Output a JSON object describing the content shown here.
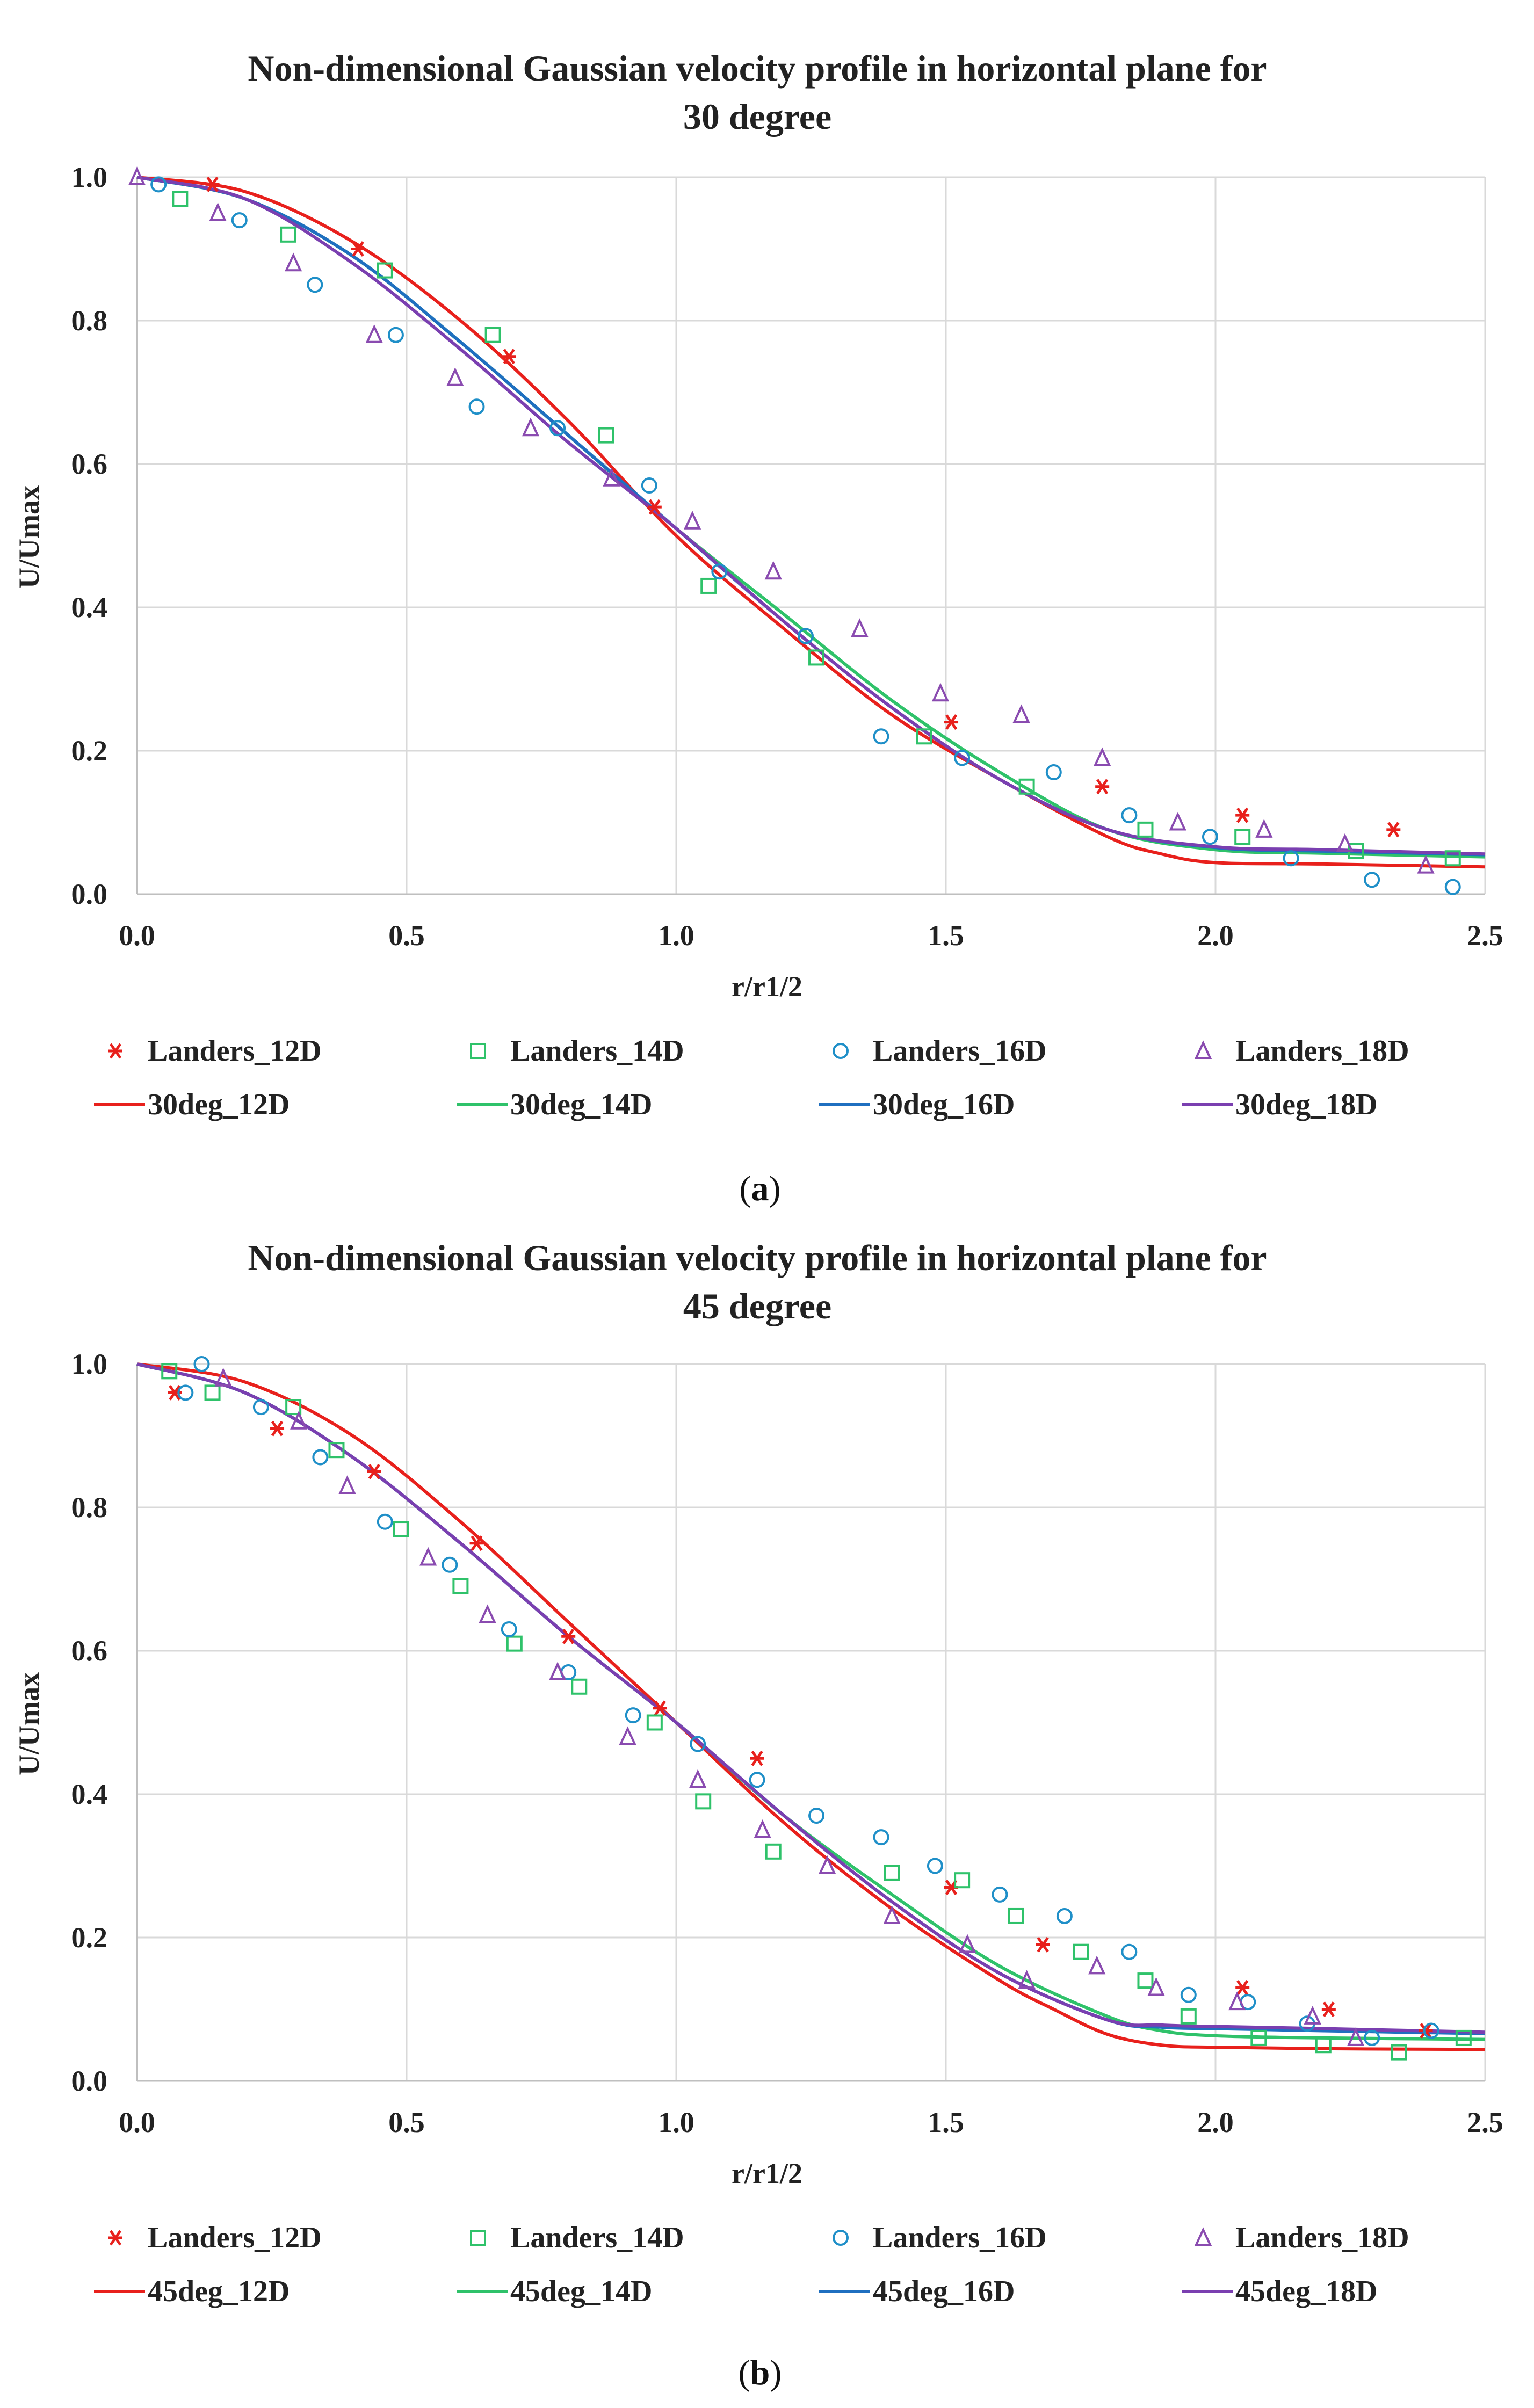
{
  "chart_data": [
    {
      "type": "scatter+line",
      "title": "Non-dimensional  Gaussian velocity profile in horizontal plane for",
      "subtitle": "30 degree",
      "xlabel": "r/r1/2",
      "ylabel": "U/Umax",
      "xlim": [
        0,
        2.5
      ],
      "ylim": [
        0,
        1.0
      ],
      "xticks": [
        "0.0",
        "0.5",
        "1.0",
        "1.5",
        "2.0",
        "2.5"
      ],
      "yticks": [
        "0.0",
        "0.2",
        "0.4",
        "0.6",
        "0.8",
        "1.0"
      ],
      "grid": true,
      "legend_position": "bottom",
      "caption": "a",
      "scatter_series": [
        {
          "name": "Landers_12D",
          "marker": "star",
          "color": "#e8201c",
          "x": [
            0.14,
            0.41,
            0.69,
            0.96,
            1.51,
            1.79,
            2.05,
            2.33
          ],
          "y": [
            0.99,
            0.9,
            0.75,
            0.54,
            0.24,
            0.15,
            0.11,
            0.09
          ]
        },
        {
          "name": "Landers_14D",
          "marker": "square",
          "color": "#2fc26a",
          "x": [
            0.08,
            0.28,
            0.46,
            0.66,
            0.87,
            1.06,
            1.26,
            1.46,
            1.65,
            1.87,
            2.05,
            2.26,
            2.44
          ],
          "y": [
            0.97,
            0.92,
            0.87,
            0.78,
            0.64,
            0.43,
            0.33,
            0.22,
            0.15,
            0.09,
            0.08,
            0.06,
            0.05
          ],
          "note": "additional point at (0.75, 0.65) visually overlapping"
        },
        {
          "name": "Landers_16D",
          "marker": "circle",
          "color": "#1f8fc8",
          "x": [
            0.04,
            0.19,
            0.33,
            0.48,
            0.63,
            0.78,
            0.95,
            1.08,
            1.24,
            1.38,
            1.53,
            1.7,
            1.84,
            1.99,
            2.14,
            2.29,
            2.44
          ],
          "y": [
            0.99,
            0.94,
            0.85,
            0.78,
            0.68,
            0.65,
            0.57,
            0.45,
            0.36,
            0.22,
            0.19,
            0.17,
            0.11,
            0.08,
            0.05,
            0.02,
            0.01
          ]
        },
        {
          "name": "Landers_18D",
          "marker": "triangle",
          "color": "#8a4bb0",
          "x": [
            0.0,
            0.15,
            0.29,
            0.44,
            0.59,
            0.73,
            0.88,
            1.03,
            1.18,
            1.34,
            1.49,
            1.64,
            1.79,
            1.93,
            2.09,
            2.24,
            2.39
          ],
          "y": [
            1.0,
            0.95,
            0.88,
            0.78,
            0.72,
            0.65,
            0.58,
            0.52,
            0.45,
            0.37,
            0.28,
            0.25,
            0.19,
            0.1,
            0.09,
            0.07,
            0.04
          ]
        }
      ],
      "line_series": [
        {
          "name": "30deg_12D",
          "color": "#e8201c",
          "x": [
            0.0,
            0.2,
            0.4,
            0.6,
            0.8,
            1.0,
            1.2,
            1.4,
            1.6,
            1.8,
            1.9,
            2.0,
            2.2,
            2.5
          ],
          "y": [
            1.0,
            0.98,
            0.91,
            0.8,
            0.66,
            0.5,
            0.37,
            0.25,
            0.16,
            0.08,
            0.056,
            0.044,
            0.042,
            0.038
          ]
        },
        {
          "name": "30deg_14D",
          "color": "#2fc26a",
          "x": [
            0.0,
            0.2,
            0.4,
            0.6,
            0.8,
            1.0,
            1.2,
            1.4,
            1.6,
            1.8,
            2.0,
            2.2,
            2.5
          ],
          "y": [
            1.0,
            0.97,
            0.89,
            0.77,
            0.64,
            0.51,
            0.39,
            0.27,
            0.17,
            0.09,
            0.062,
            0.057,
            0.052
          ]
        },
        {
          "name": "30deg_16D",
          "color": "#1f6fc0",
          "x": [
            0.0,
            0.2,
            0.4,
            0.6,
            0.8,
            1.0,
            1.2,
            1.4,
            1.6,
            1.8,
            2.0,
            2.2,
            2.5
          ],
          "y": [
            1.0,
            0.97,
            0.89,
            0.77,
            0.64,
            0.51,
            0.38,
            0.26,
            0.16,
            0.09,
            0.065,
            0.06,
            0.055
          ]
        },
        {
          "name": "30deg_18D",
          "color": "#7a3fb0",
          "x": [
            0.0,
            0.2,
            0.4,
            0.6,
            0.8,
            1.0,
            1.2,
            1.4,
            1.6,
            1.8,
            2.0,
            2.2,
            2.5
          ],
          "y": [
            1.0,
            0.97,
            0.88,
            0.76,
            0.63,
            0.51,
            0.38,
            0.26,
            0.16,
            0.09,
            0.066,
            0.062,
            0.056
          ]
        }
      ]
    },
    {
      "type": "scatter+line",
      "title": "Non-dimensional  Gaussian velocity profile in horizontal plane for",
      "subtitle": "45 degree",
      "xlabel": "r/r1/2",
      "ylabel": "U/Umax",
      "xlim": [
        0,
        2.5
      ],
      "ylim": [
        0,
        1.0
      ],
      "xticks": [
        "0.0",
        "0.5",
        "1.0",
        "1.5",
        "2.0",
        "2.5"
      ],
      "yticks": [
        "0.0",
        "0.2",
        "0.4",
        "0.6",
        "0.8",
        "1.0"
      ],
      "grid": true,
      "legend_position": "bottom",
      "caption": "b",
      "scatter_series": [
        {
          "name": "Landers_12D",
          "marker": "star",
          "color": "#e8201c",
          "x": [
            0.07,
            0.26,
            0.44,
            0.63,
            0.8,
            0.97,
            1.15,
            1.51,
            1.68,
            2.05,
            2.21,
            2.39
          ],
          "y": [
            0.96,
            0.91,
            0.85,
            0.75,
            0.62,
            0.52,
            0.45,
            0.27,
            0.19,
            0.13,
            0.1,
            0.07
          ]
        },
        {
          "name": "Landers_14D",
          "marker": "square",
          "color": "#2fc26a",
          "x": [
            0.06,
            0.14,
            0.29,
            0.37,
            0.49,
            0.6,
            0.7,
            0.82,
            0.96,
            1.05,
            1.18,
            1.4,
            1.53,
            1.63,
            1.75,
            1.87,
            1.95,
            2.08,
            2.2,
            2.34,
            2.46
          ],
          "y": [
            0.99,
            0.96,
            0.94,
            0.88,
            0.77,
            0.69,
            0.61,
            0.55,
            0.5,
            0.39,
            0.32,
            0.29,
            0.28,
            0.23,
            0.18,
            0.14,
            0.09,
            0.06,
            0.05,
            0.04,
            0.06
          ]
        },
        {
          "name": "Landers_16D",
          "marker": "circle",
          "color": "#1f8fc8",
          "x": [
            0.09,
            0.12,
            0.23,
            0.34,
            0.46,
            0.58,
            0.69,
            0.8,
            0.92,
            1.04,
            1.15,
            1.26,
            1.38,
            1.48,
            1.6,
            1.72,
            1.84,
            1.95,
            2.06,
            2.17,
            2.29,
            2.4
          ],
          "y": [
            0.96,
            1.0,
            0.94,
            0.87,
            0.78,
            0.72,
            0.63,
            0.57,
            0.51,
            0.47,
            0.42,
            0.37,
            0.34,
            0.3,
            0.26,
            0.23,
            0.18,
            0.12,
            0.11,
            0.08,
            0.06,
            0.07
          ]
        },
        {
          "name": "Landers_18D",
          "marker": "triangle",
          "color": "#8a4bb0",
          "x": [
            0.16,
            0.3,
            0.39,
            0.54,
            0.65,
            0.78,
            0.91,
            1.04,
            1.16,
            1.28,
            1.4,
            1.54,
            1.65,
            1.78,
            1.89,
            2.04,
            2.18,
            2.26
          ],
          "y": [
            0.98,
            0.92,
            0.83,
            0.73,
            0.65,
            0.57,
            0.48,
            0.42,
            0.35,
            0.3,
            0.23,
            0.19,
            0.14,
            0.16,
            0.13,
            0.11,
            0.09,
            0.06
          ]
        }
      ],
      "line_series": [
        {
          "name": "45deg_12D",
          "color": "#e8201c",
          "x": [
            0.0,
            0.2,
            0.4,
            0.6,
            0.8,
            1.0,
            1.2,
            1.4,
            1.6,
            1.7,
            1.8,
            1.9,
            2.0,
            2.2,
            2.5
          ],
          "y": [
            1.0,
            0.975,
            0.9,
            0.78,
            0.64,
            0.5,
            0.36,
            0.24,
            0.14,
            0.1,
            0.065,
            0.05,
            0.047,
            0.045,
            0.044
          ]
        },
        {
          "name": "45deg_14D",
          "color": "#2fc26a",
          "x": [
            0.0,
            0.2,
            0.4,
            0.6,
            0.8,
            1.0,
            1.2,
            1.4,
            1.6,
            1.8,
            1.9,
            2.0,
            2.2,
            2.5
          ],
          "y": [
            1.0,
            0.96,
            0.87,
            0.75,
            0.62,
            0.5,
            0.37,
            0.26,
            0.16,
            0.09,
            0.07,
            0.063,
            0.06,
            0.058
          ]
        },
        {
          "name": "45deg_16D",
          "color": "#1f6fc0",
          "x": [
            0.0,
            0.2,
            0.4,
            0.6,
            0.8,
            1.0,
            1.2,
            1.4,
            1.6,
            1.8,
            1.9,
            2.0,
            2.2,
            2.5
          ],
          "y": [
            1.0,
            0.96,
            0.87,
            0.75,
            0.62,
            0.5,
            0.37,
            0.25,
            0.15,
            0.085,
            0.075,
            0.073,
            0.07,
            0.066
          ]
        },
        {
          "name": "45deg_18D",
          "color": "#7a3fb0",
          "x": [
            0.0,
            0.2,
            0.4,
            0.6,
            0.8,
            1.0,
            1.2,
            1.4,
            1.6,
            1.8,
            1.9,
            2.0,
            2.2,
            2.5
          ],
          "y": [
            1.0,
            0.96,
            0.87,
            0.75,
            0.62,
            0.5,
            0.37,
            0.25,
            0.15,
            0.085,
            0.078,
            0.076,
            0.073,
            0.068
          ]
        }
      ]
    }
  ]
}
